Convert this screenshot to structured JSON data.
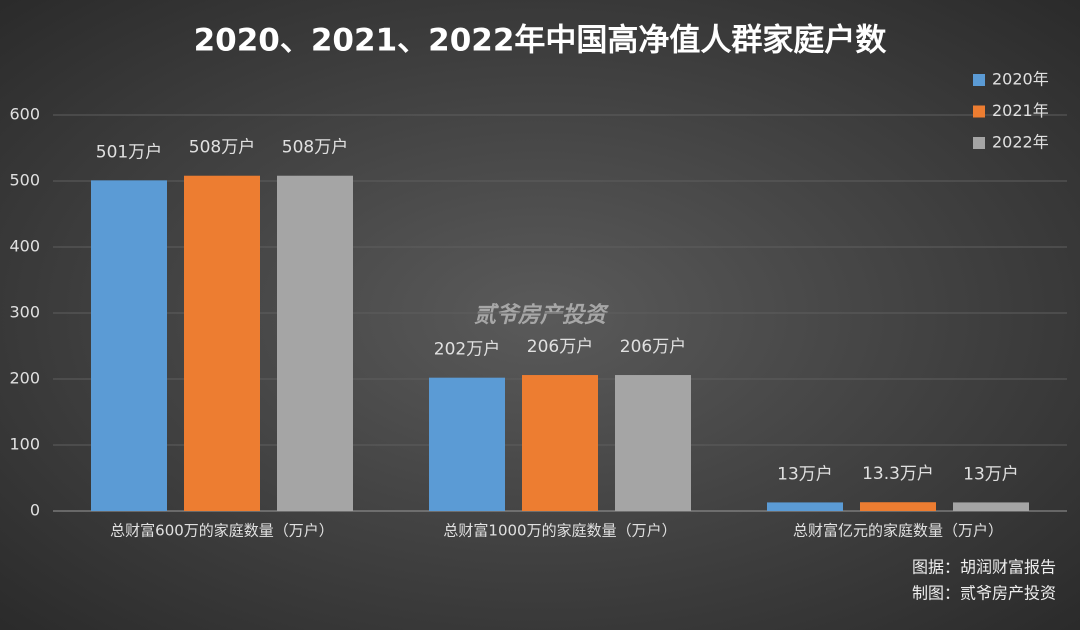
{
  "chart_data": {
    "type": "bar",
    "title": "2020、2021、2022年中国高净值人群家庭户数",
    "categories": [
      "总财富600万的家庭数量（万户）",
      "总财富1000万的家庭数量（万户）",
      "总财富亿元的家庭数量（万户）"
    ],
    "series": [
      {
        "name": "2020年",
        "color": "#5b9bd5",
        "values": [
          501,
          202,
          13
        ],
        "value_labels": [
          "501万户",
          "202万户",
          "13万户"
        ]
      },
      {
        "name": "2021年",
        "color": "#ed7d31",
        "values": [
          508,
          206,
          13.3
        ],
        "value_labels": [
          "508万户",
          "206万户",
          "13.3万户"
        ]
      },
      {
        "name": "2022年",
        "color": "#a5a5a5",
        "values": [
          508,
          206,
          13
        ],
        "value_labels": [
          "508万户",
          "206万户",
          "13万户"
        ]
      }
    ],
    "ylim": [
      0,
      600
    ],
    "yticks": [
      0,
      100,
      200,
      300,
      400,
      500,
      600
    ],
    "grid": true,
    "legend": "top-right",
    "annotations": [
      "贰爷房产投资",
      "图据：胡润财富报告",
      "制图：贰爷房产投资"
    ]
  }
}
